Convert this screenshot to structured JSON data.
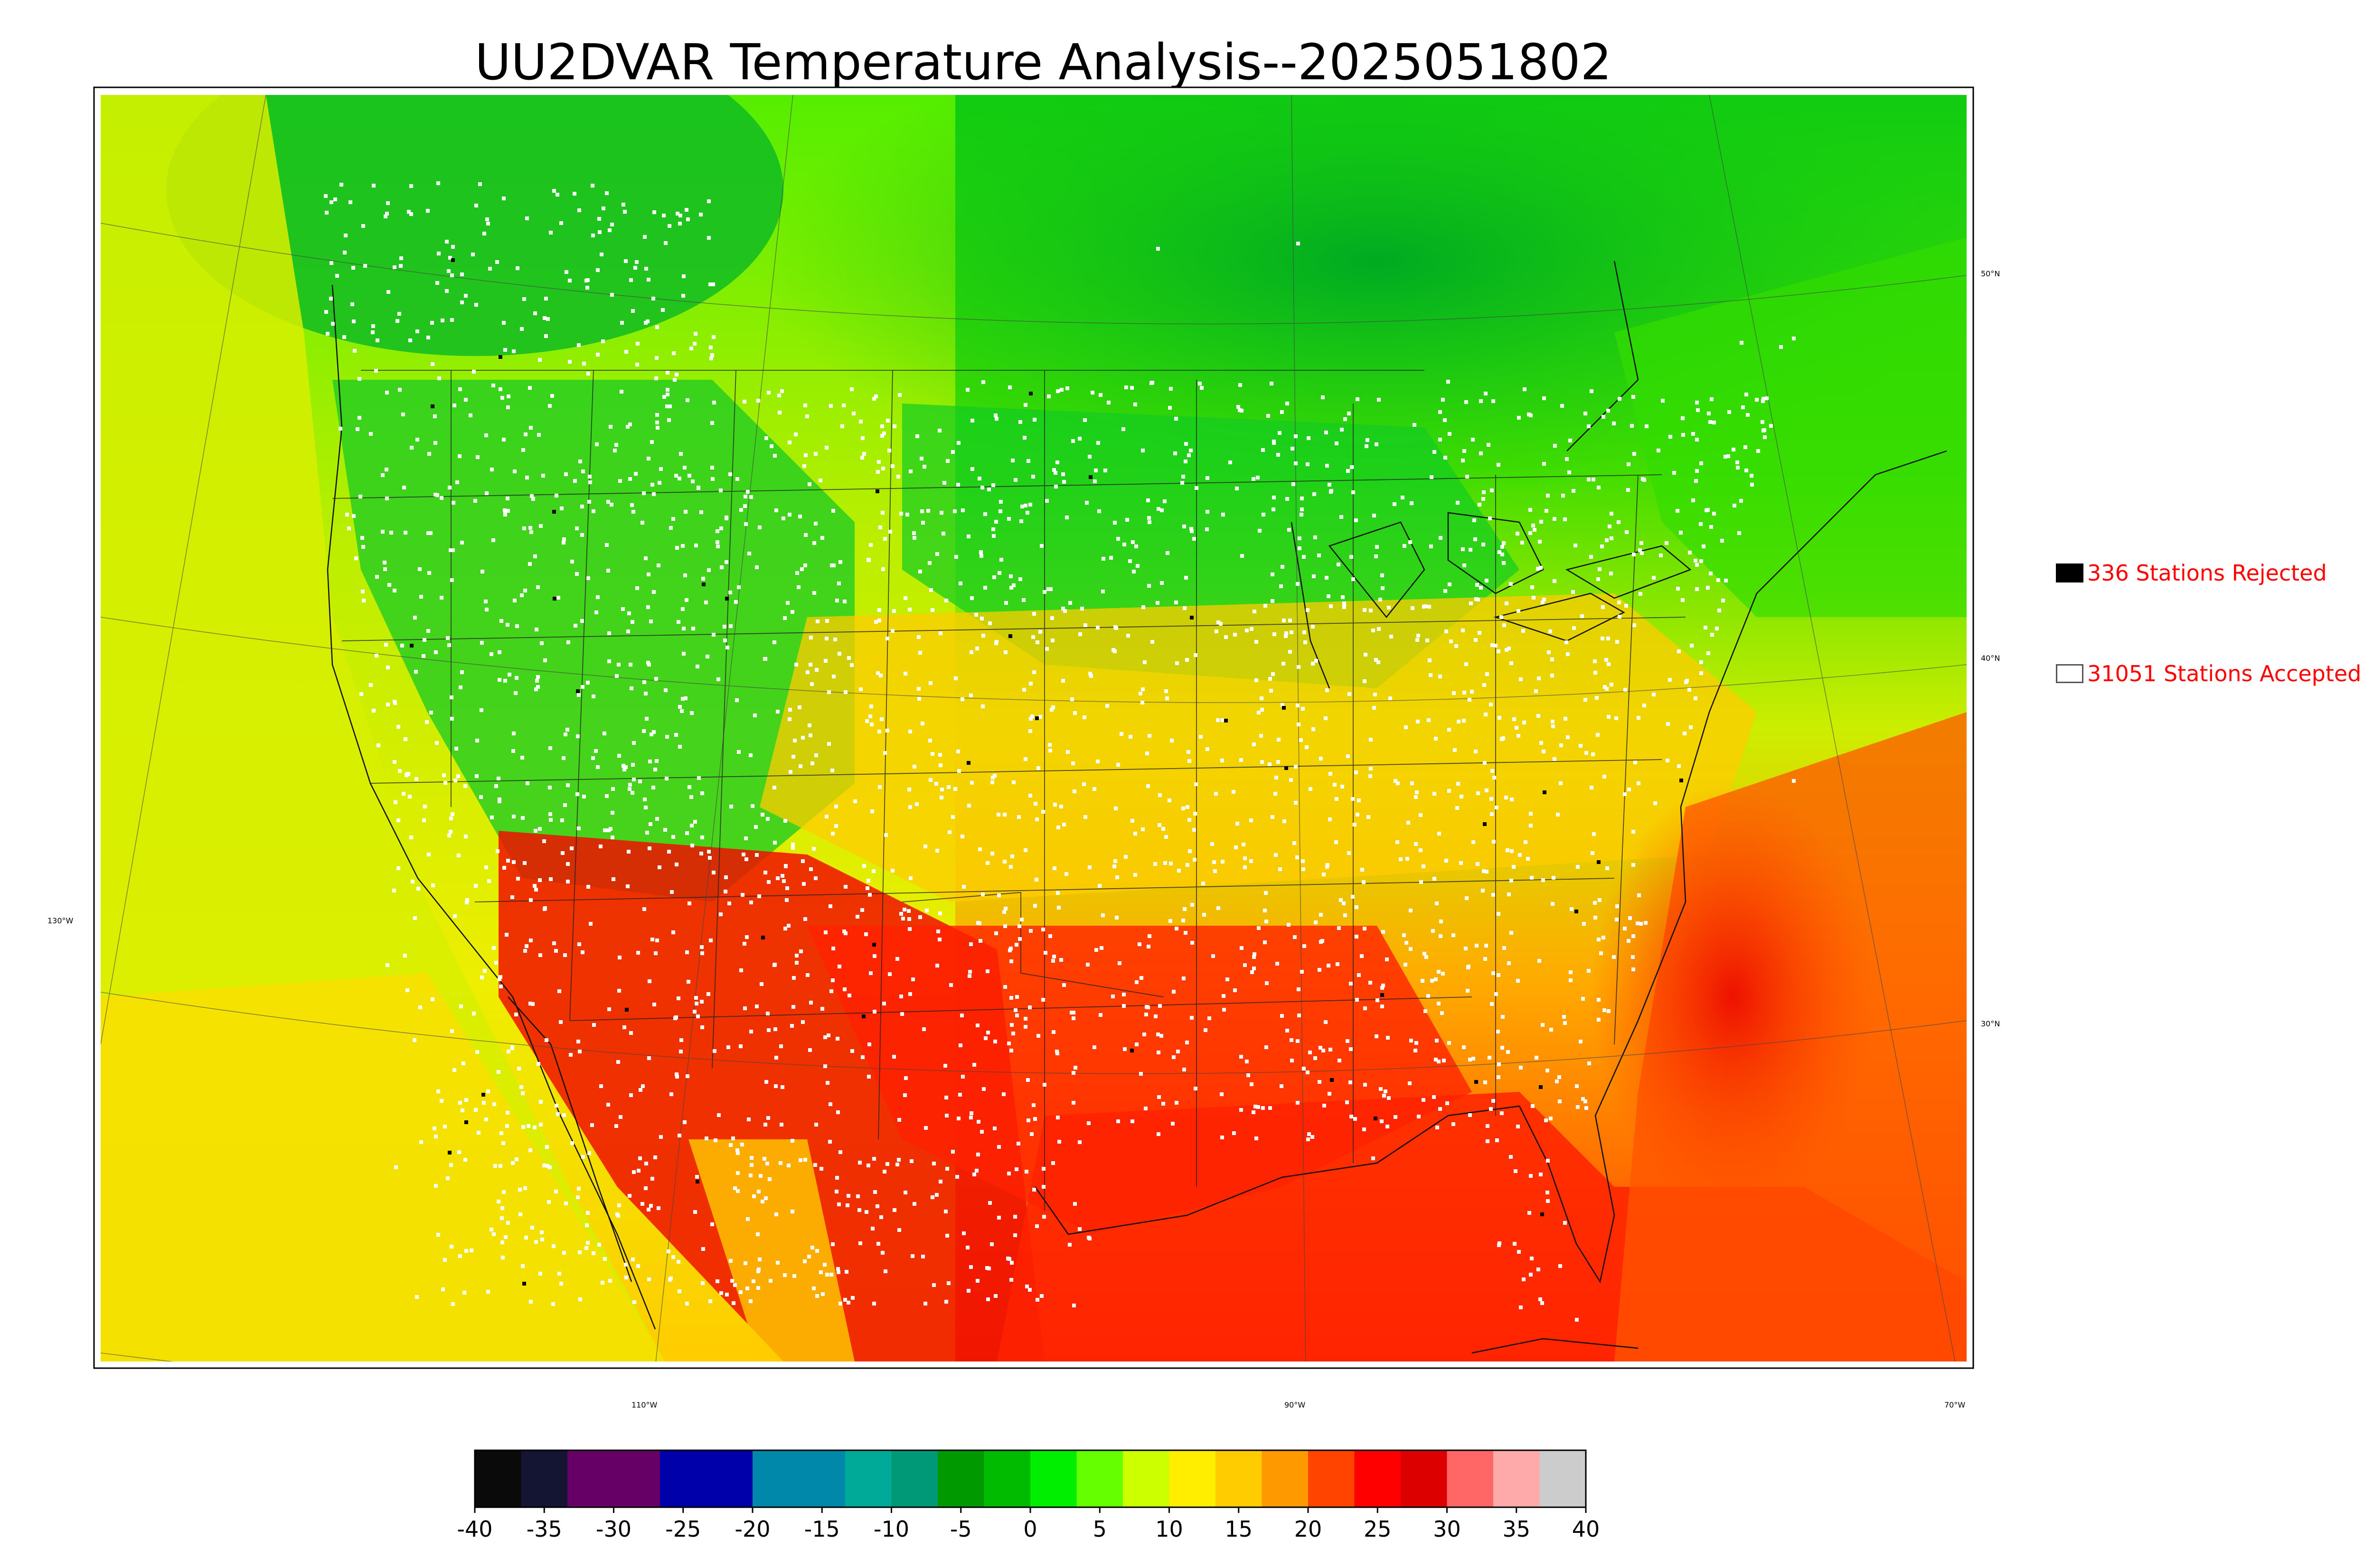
{
  "title": "UU2DVAR Temperature Analysis--2025051802",
  "legend": {
    "rejected": {
      "label": "336 Stations Rejected",
      "swatch_color": "#000000"
    },
    "accepted": {
      "label": "31051 Stations Accepted",
      "swatch_color": "#ffffff"
    }
  },
  "grid_labels": {
    "lat": [
      "50°N",
      "40°N",
      "30°N"
    ],
    "lon": [
      "130°W",
      "110°W",
      "90°W",
      "70°W"
    ]
  },
  "colorbar": {
    "ticks": [
      "-40",
      "-35",
      "-30",
      "-25",
      "-20",
      "-15",
      "-10",
      "-5",
      "0",
      "5",
      "10",
      "15",
      "20",
      "25",
      "30",
      "35",
      "40"
    ],
    "range": [
      -40,
      40
    ],
    "colors": [
      "#0a0a0a",
      "#141433",
      "#660066",
      "#660066",
      "#0000aa",
      "#0000aa",
      "#0088aa",
      "#0088aa",
      "#00aa99",
      "#009977",
      "#009900",
      "#00bb00",
      "#00ee00",
      "#66ff00",
      "#ccff00",
      "#ffee00",
      "#ffcc00",
      "#ff9900",
      "#ff4400",
      "#ff0000",
      "#dd0000",
      "#ff6666",
      "#ffaaaa",
      "#cccccc"
    ]
  },
  "colors": {
    "frame": "#000000",
    "ocean_west": "#d6ee00",
    "gulf": "#ff3300",
    "canada": "#11cc11",
    "plains": "#ffc000",
    "accepted_station": "#ffffff",
    "rejected_station": "#000000"
  }
}
